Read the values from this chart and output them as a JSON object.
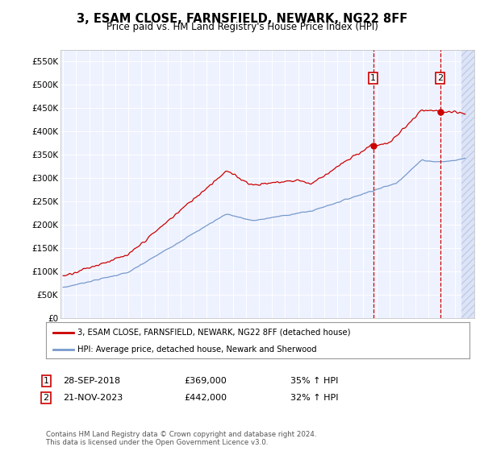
{
  "title": "3, ESAM CLOSE, FARNSFIELD, NEWARK, NG22 8FF",
  "subtitle": "Price paid vs. HM Land Registry's House Price Index (HPI)",
  "ylim": [
    0,
    575000
  ],
  "yticks": [
    0,
    50000,
    100000,
    150000,
    200000,
    250000,
    300000,
    350000,
    400000,
    450000,
    500000,
    550000
  ],
  "ytick_labels": [
    "£0",
    "£50K",
    "£100K",
    "£150K",
    "£200K",
    "£250K",
    "£300K",
    "£350K",
    "£400K",
    "£450K",
    "£500K",
    "£550K"
  ],
  "xlim_start": 1994.8,
  "xlim_end": 2026.5,
  "xticks": [
    1995,
    1996,
    1997,
    1998,
    1999,
    2000,
    2001,
    2002,
    2003,
    2004,
    2005,
    2006,
    2007,
    2008,
    2009,
    2010,
    2011,
    2012,
    2013,
    2014,
    2015,
    2016,
    2017,
    2018,
    2019,
    2020,
    2021,
    2022,
    2023,
    2024,
    2025,
    2026
  ],
  "property_color": "#cc0000",
  "hpi_color": "#7799cc",
  "sale1_date": "28-SEP-2018",
  "sale1_price": 369000,
  "sale1_year": 2018.75,
  "sale1_pct": "35% ↑ HPI",
  "sale2_date": "21-NOV-2023",
  "sale2_price": 442000,
  "sale2_year": 2023.9,
  "sale2_pct": "32% ↑ HPI",
  "legend_property": "3, ESAM CLOSE, FARNSFIELD, NEWARK, NG22 8FF (detached house)",
  "legend_hpi": "HPI: Average price, detached house, Newark and Sherwood",
  "footnote": "Contains HM Land Registry data © Crown copyright and database right 2024.\nThis data is licensed under the Open Government Licence v3.0.",
  "background_color": "#ffffff",
  "plot_bg_color": "#eef2ff",
  "hatch_color": "#c8d4f0"
}
